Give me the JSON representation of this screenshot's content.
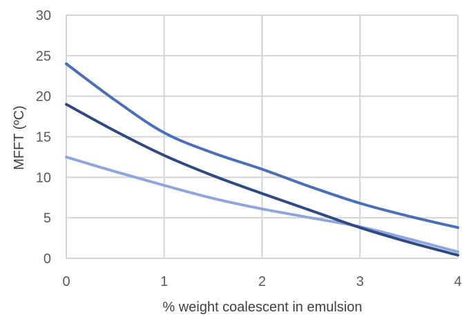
{
  "chart_data": {
    "type": "line",
    "title": "",
    "xlabel": "% weight coalescent in emulsion",
    "ylabel": "MFFT (ºC)",
    "xlim": [
      0,
      4
    ],
    "ylim": [
      0,
      30
    ],
    "x_ticks": [
      "0",
      "1",
      "2",
      "3",
      "4"
    ],
    "y_ticks": [
      "0",
      "5",
      "10",
      "15",
      "20",
      "25",
      "30"
    ],
    "grid": true,
    "legend": "none",
    "series": [
      {
        "color": "#4a6fb8",
        "points": [
          [
            0,
            24
          ],
          [
            0.5,
            19.5
          ],
          [
            1,
            15.5
          ],
          [
            1.5,
            13
          ],
          [
            2,
            11
          ],
          [
            2.5,
            8.8
          ],
          [
            3,
            6.8
          ],
          [
            3.5,
            5.2
          ],
          [
            4,
            3.8
          ]
        ]
      },
      {
        "color": "#2f4a82",
        "points": [
          [
            0,
            19
          ],
          [
            0.5,
            15.7
          ],
          [
            1,
            12.7
          ],
          [
            1.5,
            10.2
          ],
          [
            2,
            8
          ],
          [
            2.5,
            5.9
          ],
          [
            3,
            3.8
          ],
          [
            3.5,
            2
          ],
          [
            4,
            0.4
          ]
        ]
      },
      {
        "color": "#8ea5dd",
        "points": [
          [
            0,
            12.5
          ],
          [
            0.5,
            10.7
          ],
          [
            1,
            9
          ],
          [
            1.5,
            7.4
          ],
          [
            2,
            6.1
          ],
          [
            2.5,
            5
          ],
          [
            3,
            3.9
          ],
          [
            3.5,
            2.4
          ],
          [
            4,
            0.8
          ]
        ]
      }
    ]
  }
}
